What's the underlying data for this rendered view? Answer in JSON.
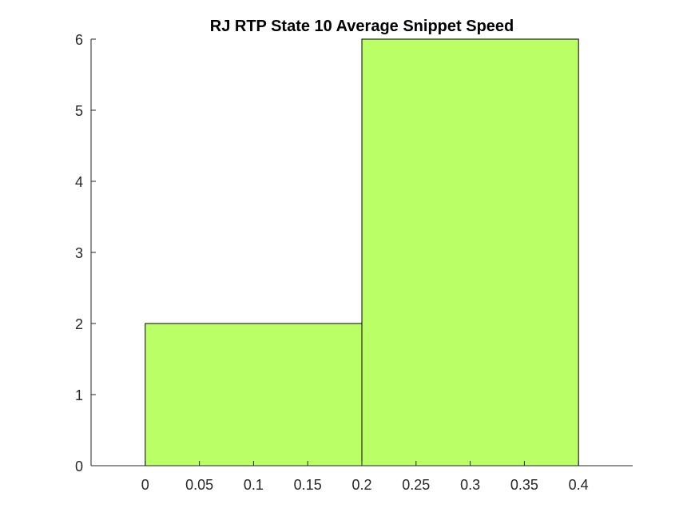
{
  "chart_data": {
    "type": "bar",
    "title": "RJ  RTP State 10 Average Snippet Speed",
    "xlabel": "",
    "ylabel": "",
    "bins": [
      {
        "x0": 0,
        "x1": 0.2,
        "value": 2
      },
      {
        "x0": 0.2,
        "x1": 0.4,
        "value": 6
      }
    ],
    "xlim": [
      -0.05,
      0.45
    ],
    "ylim": [
      0,
      6
    ],
    "xticks": [
      0,
      0.05,
      0.1,
      0.15,
      0.2,
      0.25,
      0.3,
      0.35,
      0.4
    ],
    "xtick_labels": [
      "0",
      "0.05",
      "0.1",
      "0.15",
      "0.2",
      "0.25",
      "0.3",
      "0.35",
      "0.4"
    ],
    "yticks": [
      0,
      1,
      2,
      3,
      4,
      5,
      6
    ],
    "ytick_labels": [
      "0",
      "1",
      "2",
      "3",
      "4",
      "5",
      "6"
    ],
    "bar_color": "#BBFF66",
    "edge_color": "#000000",
    "grid": false
  }
}
